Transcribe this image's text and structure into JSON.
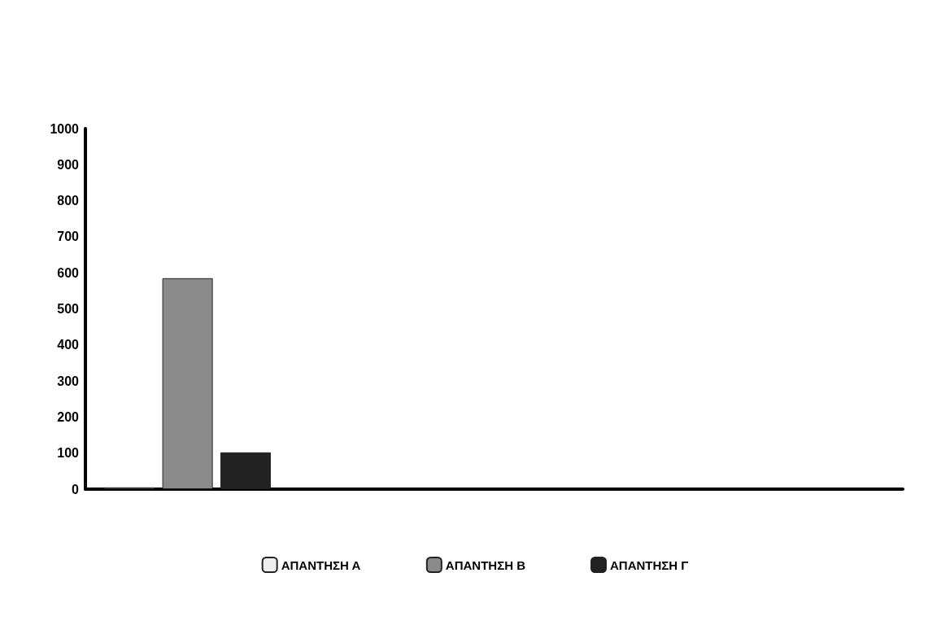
{
  "chart_data": {
    "type": "bar",
    "categories": [
      null,
      null,
      null,
      null
    ],
    "series": [
      {
        "name": "ΑΠΑΝΤΗΣΗ Α",
        "color": "#eeeeee",
        "values": [
          5,
          null,
          null,
          null
        ]
      },
      {
        "name": "ΑΠΑΝΤΗΣΗ Β",
        "color": "#8a8a8a",
        "values": [
          585,
          null,
          null,
          null
        ]
      },
      {
        "name": "ΑΠΑΝΤΗΣΗ Γ",
        "color": "#222222",
        "values": [
          102,
          null,
          null,
          null
        ]
      }
    ],
    "ylim": [
      0,
      1000
    ],
    "yticks": [
      0,
      100,
      200,
      300,
      400,
      500,
      600,
      700,
      800,
      900,
      1000
    ],
    "grid": false,
    "legend": "bottom"
  }
}
